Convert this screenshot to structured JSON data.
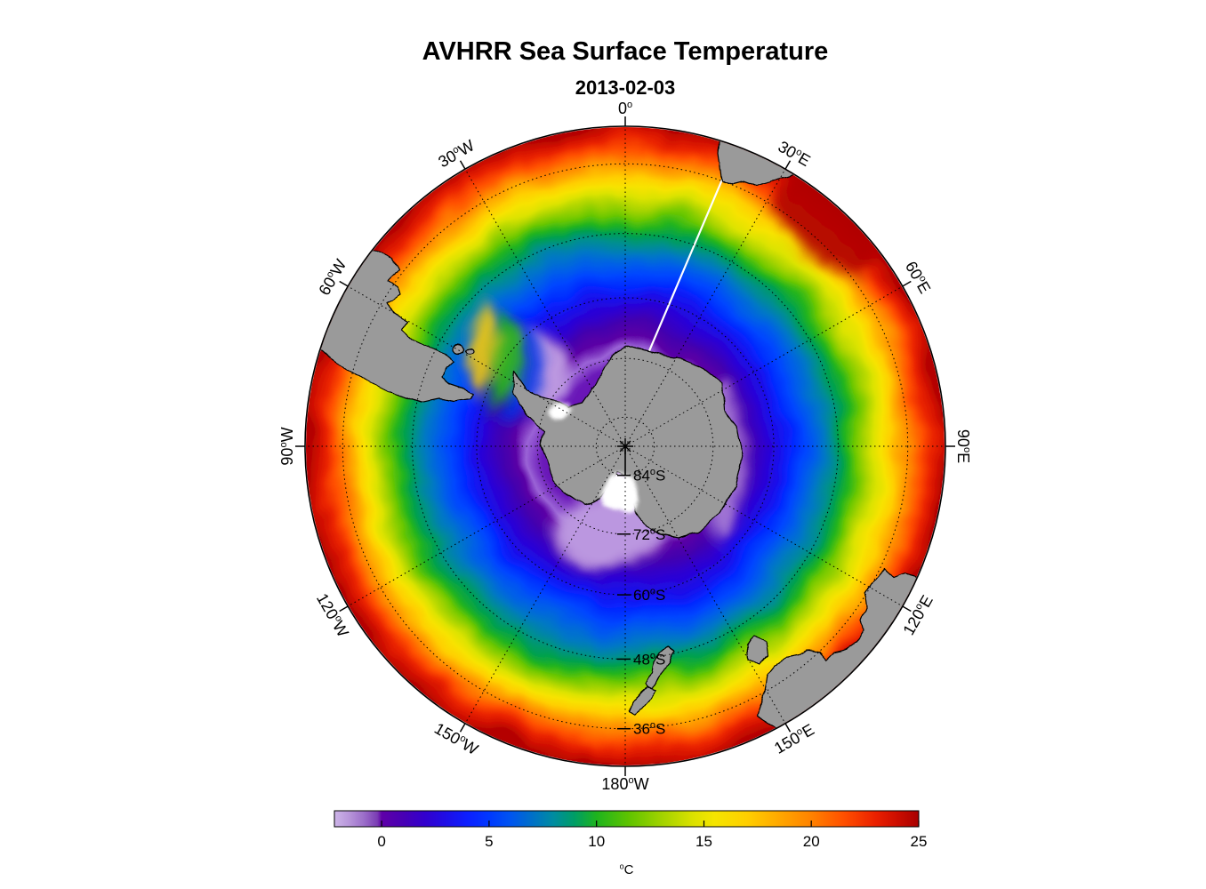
{
  "title": "AVHRR Sea Surface Temperature",
  "subtitle": "2013-02-03",
  "chart_data": {
    "type": "heatmap",
    "title": "AVHRR Sea Surface Temperature",
    "date": "2013-02-03",
    "projection": "south polar stereographic",
    "extent": {
      "lat_min_deg": -90,
      "lat_max_deg": -30,
      "center": "South Pole"
    },
    "grid": {
      "parallels_deg_s": [
        84,
        72,
        60,
        48,
        36
      ],
      "meridian_step_deg": 30
    },
    "meridian_labels": [
      {
        "deg": 0,
        "dir": "",
        "az_deg": 0,
        "rot_deg": 0
      },
      {
        "deg": 30,
        "dir": "E",
        "az_deg": 30,
        "rot_deg": 30
      },
      {
        "deg": 60,
        "dir": "E",
        "az_deg": 60,
        "rot_deg": 60
      },
      {
        "deg": 90,
        "dir": "E",
        "az_deg": 90,
        "rot_deg": 90
      },
      {
        "deg": 120,
        "dir": "E",
        "az_deg": 120,
        "rot_deg": -60
      },
      {
        "deg": 150,
        "dir": "E",
        "az_deg": 150,
        "rot_deg": -30
      },
      {
        "deg": 180,
        "dir": "W",
        "az_deg": 180,
        "rot_deg": 0
      },
      {
        "deg": 150,
        "dir": "W",
        "az_deg": 210,
        "rot_deg": 30
      },
      {
        "deg": 120,
        "dir": "W",
        "az_deg": 240,
        "rot_deg": 60
      },
      {
        "deg": 90,
        "dir": "W",
        "az_deg": 270,
        "rot_deg": -90
      },
      {
        "deg": 60,
        "dir": "W",
        "az_deg": 300,
        "rot_deg": -60
      },
      {
        "deg": 30,
        "dir": "W",
        "az_deg": 330,
        "rot_deg": -30
      }
    ],
    "parallel_labels": [
      {
        "deg": 84,
        "dir": "S"
      },
      {
        "deg": 72,
        "dir": "S"
      },
      {
        "deg": 60,
        "dir": "S"
      },
      {
        "deg": 48,
        "dir": "S"
      },
      {
        "deg": 36,
        "dir": "S"
      }
    ],
    "colorbar": {
      "min": -2.2,
      "max": 25,
      "ticks": [
        0,
        5,
        10,
        15,
        20,
        25
      ],
      "unit": "C",
      "orientation": "horizontal-bottom",
      "stops": [
        {
          "value": -2.2,
          "color": "#cdb5e8"
        },
        {
          "value": -1.5,
          "color": "#b795da"
        },
        {
          "value": -0.8,
          "color": "#9a6cc8"
        },
        {
          "value": -0.2,
          "color": "#7a3cb4"
        },
        {
          "value": 0.0,
          "color": "#5f00a8"
        },
        {
          "value": 1.0,
          "color": "#4800b4"
        },
        {
          "value": 2.0,
          "color": "#3300cd"
        },
        {
          "value": 3.0,
          "color": "#1e0ee6"
        },
        {
          "value": 4.0,
          "color": "#0c1fff"
        },
        {
          "value": 5.0,
          "color": "#0038ff"
        },
        {
          "value": 6.0,
          "color": "#0055f0"
        },
        {
          "value": 7.0,
          "color": "#0070c8"
        },
        {
          "value": 8.0,
          "color": "#008ca0"
        },
        {
          "value": 9.0,
          "color": "#009e64"
        },
        {
          "value": 10.0,
          "color": "#1eb41e"
        },
        {
          "value": 11.5,
          "color": "#5fc300"
        },
        {
          "value": 13.0,
          "color": "#a0d200"
        },
        {
          "value": 14.5,
          "color": "#dce100"
        },
        {
          "value": 15.5,
          "color": "#f5e500"
        },
        {
          "value": 17.0,
          "color": "#ffcf00"
        },
        {
          "value": 18.5,
          "color": "#ffa800"
        },
        {
          "value": 20.0,
          "color": "#ff8200"
        },
        {
          "value": 21.5,
          "color": "#ff5000"
        },
        {
          "value": 23.0,
          "color": "#ea2000"
        },
        {
          "value": 24.0,
          "color": "#cc0d00"
        },
        {
          "value": 25.0,
          "color": "#a80000"
        }
      ]
    },
    "sst_by_latitude_approx": [
      {
        "lat_deg": -78,
        "sst_c": -1.8
      },
      {
        "lat_deg": -72,
        "sst_c": -1.0
      },
      {
        "lat_deg": -66,
        "sst_c": 0.0
      },
      {
        "lat_deg": -60,
        "sst_c": 2.5
      },
      {
        "lat_deg": -54,
        "sst_c": 6.0
      },
      {
        "lat_deg": -48,
        "sst_c": 11.0
      },
      {
        "lat_deg": -42,
        "sst_c": 16.0
      },
      {
        "lat_deg": -36,
        "sst_c": 20.0
      },
      {
        "lat_deg": -30,
        "sst_c": 24.5
      }
    ],
    "colors": {
      "land": "#9a9a9a",
      "coastline": "#000000",
      "ice_shelf": "#ffffff",
      "data_gap_line": "#ffffff",
      "grid": "#000000",
      "background": "#ffffff"
    }
  }
}
